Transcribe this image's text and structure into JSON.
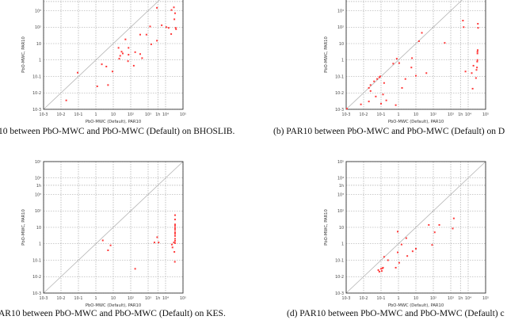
{
  "chart_data": [
    {
      "id": "a",
      "type": "scatter",
      "title": "",
      "xlabel": "PbO-MWC (Default), PAR10",
      "ylabel": "PbO-MWC, PAR10",
      "xscale": "log",
      "yscale": "log",
      "xlim": [
        0.001,
        100000
      ],
      "ylim": [
        0.001,
        100000
      ],
      "x_ticks": [
        "10-3",
        "10-2",
        "10-1",
        "1",
        "10",
        "10²",
        "10³",
        "1h",
        "10⁴",
        "10⁵"
      ],
      "y_ticks": [
        "10-3",
        "10-2",
        "10-1",
        "1",
        "10",
        "10²",
        "10³"
      ],
      "grid": true,
      "diagonal": true,
      "points": [
        [
          0.02,
          0.0035
        ],
        [
          0.09,
          0.17
        ],
        [
          1.2,
          0.025
        ],
        [
          2.2,
          0.55
        ],
        [
          4,
          0.4
        ],
        [
          5,
          0.03
        ],
        [
          9,
          0.2
        ],
        [
          20,
          5.5
        ],
        [
          22,
          1.2
        ],
        [
          25,
          1.8
        ],
        [
          30,
          3.2
        ],
        [
          35,
          2.5
        ],
        [
          50,
          18
        ],
        [
          70,
          0.85
        ],
        [
          75,
          5.5
        ],
        [
          75,
          2.1
        ],
        [
          150,
          0.45
        ],
        [
          180,
          3
        ],
        [
          350,
          2.3
        ],
        [
          350,
          35
        ],
        [
          450,
          1.3
        ],
        [
          800,
          35
        ],
        [
          1300,
          110
        ],
        [
          1500,
          9
        ],
        [
          3200,
          15
        ],
        [
          3200,
          1500
        ],
        [
          6000,
          130
        ],
        [
          11000,
          100
        ],
        [
          15000,
          90
        ],
        [
          21000,
          38
        ],
        [
          22000,
          1100
        ],
        [
          30000,
          1600
        ],
        [
          32000,
          300
        ],
        [
          35000,
          700
        ],
        [
          38000,
          90
        ],
        [
          40000,
          75
        ]
      ]
    },
    {
      "id": "b",
      "type": "scatter",
      "title": "",
      "xlabel": "PbO-MWC (Default), PAR10",
      "ylabel": "PbO-MWC, PAR10",
      "xscale": "log",
      "yscale": "log",
      "xlim": [
        0.001,
        100000
      ],
      "ylim": [
        0.001,
        100000
      ],
      "x_ticks": [
        "10-3",
        "10-2",
        "10-1",
        "1",
        "10",
        "10²",
        "10³",
        "1h",
        "10⁴",
        "10⁵"
      ],
      "y_ticks": [
        "10-3",
        "10-2",
        "10-1",
        "1",
        "10",
        "10²",
        "10³"
      ],
      "grid": true,
      "diagonal": true,
      "points": [
        [
          0.0011,
          0.0011
        ],
        [
          0.007,
          0.002
        ],
        [
          0.02,
          0.003
        ],
        [
          0.02,
          0.02
        ],
        [
          0.025,
          0.03
        ],
        [
          0.025,
          0.013
        ],
        [
          0.04,
          0.05
        ],
        [
          0.05,
          0.006
        ],
        [
          0.06,
          0.07
        ],
        [
          0.08,
          0.09
        ],
        [
          0.09,
          0.1
        ],
        [
          0.1,
          0.0022
        ],
        [
          0.13,
          0.008
        ],
        [
          0.15,
          0.04
        ],
        [
          0.2,
          0.0035
        ],
        [
          0.5,
          0.6
        ],
        [
          0.7,
          0.0018
        ],
        [
          0.8,
          1.2
        ],
        [
          1.1,
          0.65
        ],
        [
          1.6,
          0.02
        ],
        [
          2.5,
          0.07
        ],
        [
          5.5,
          0.35
        ],
        [
          6,
          1.3
        ],
        [
          10,
          0.11
        ],
        [
          15,
          14
        ],
        [
          22,
          45
        ],
        [
          40,
          0.16
        ],
        [
          450,
          11
        ],
        [
          5000,
          250
        ],
        [
          5500,
          100
        ],
        [
          7000,
          0.2
        ],
        [
          16000,
          0.16
        ],
        [
          18000,
          0.018
        ],
        [
          20000,
          0.45
        ],
        [
          28000,
          0.08
        ],
        [
          30000,
          0.25
        ],
        [
          32000,
          0.35
        ],
        [
          33000,
          0.8
        ],
        [
          34000,
          1
        ],
        [
          34000,
          2.5
        ],
        [
          34000,
          3.2
        ],
        [
          35000,
          4
        ],
        [
          36000,
          160
        ],
        [
          37000,
          90
        ]
      ]
    },
    {
      "id": "c",
      "type": "scatter",
      "title": "",
      "xlabel": "PbO-MWC (Default), PAR10",
      "ylabel": "PbO-MWC, PAR10",
      "xscale": "log",
      "yscale": "log",
      "xlim": [
        0.001,
        100000
      ],
      "ylim": [
        0.001,
        100000
      ],
      "x_ticks": [
        "10-3",
        "10-2",
        "10-1",
        "1",
        "10",
        "10²",
        "10³",
        "1h",
        "10⁴",
        "10⁵"
      ],
      "y_ticks": [
        "10-3",
        "10-2",
        "10-1",
        "1",
        "10",
        "10²",
        "10³",
        "1h",
        "10⁴",
        "10⁵"
      ],
      "grid": true,
      "diagonal": true,
      "points": [
        [
          2.5,
          1.6
        ],
        [
          5,
          0.4
        ],
        [
          7,
          0.8
        ],
        [
          180,
          0.03
        ],
        [
          2300,
          1.2
        ],
        [
          3300,
          2.5
        ],
        [
          4000,
          1.2
        ],
        [
          23000,
          0.9
        ],
        [
          25000,
          0.6
        ],
        [
          30000,
          1.2
        ],
        [
          32000,
          0.32
        ],
        [
          34000,
          0.08
        ],
        [
          35000,
          1.5
        ],
        [
          35000,
          2
        ],
        [
          35000,
          3
        ],
        [
          35000,
          4
        ],
        [
          35000,
          5
        ],
        [
          35000,
          7
        ],
        [
          35000,
          9
        ],
        [
          35000,
          12
        ],
        [
          35000,
          15
        ],
        [
          35000,
          30
        ],
        [
          35000,
          55
        ],
        [
          35000,
          1.1
        ]
      ]
    },
    {
      "id": "d",
      "type": "scatter",
      "title": "",
      "xlabel": "PbO-MWC (Default), PAR10",
      "ylabel": "PbO-MWC, PAR10",
      "xscale": "log",
      "yscale": "log",
      "xlim": [
        0.001,
        100000
      ],
      "ylim": [
        0.001,
        100000
      ],
      "x_ticks": [
        "10-3",
        "10-2",
        "10-1",
        "1",
        "10",
        "10²",
        "10³",
        "1h",
        "10⁴",
        "10⁵"
      ],
      "y_ticks": [
        "10-3",
        "10-2",
        "10-1",
        "1",
        "10",
        "10²",
        "10³",
        "1h",
        "10⁴",
        "10⁵"
      ],
      "grid": true,
      "diagonal": true,
      "points": [
        [
          0.07,
          0.025
        ],
        [
          0.08,
          0.02
        ],
        [
          0.1,
          0.03
        ],
        [
          0.11,
          0.022
        ],
        [
          0.12,
          0.032
        ],
        [
          0.13,
          0.035
        ],
        [
          0.15,
          0.16
        ],
        [
          0.25,
          0.1
        ],
        [
          0.7,
          0.035
        ],
        [
          0.9,
          0.3
        ],
        [
          0.9,
          5.5
        ],
        [
          1.1,
          0.07
        ],
        [
          1.5,
          0.9
        ],
        [
          2.8,
          2.2
        ],
        [
          3.2,
          0.18
        ],
        [
          6.5,
          0.35
        ],
        [
          10,
          0.5
        ],
        [
          55,
          14
        ],
        [
          85,
          0.85
        ],
        [
          120,
          5
        ],
        [
          220,
          14
        ],
        [
          1300,
          8.5
        ],
        [
          1500,
          35
        ]
      ]
    }
  ],
  "captions": {
    "a": "10 between PbO-MWC and PbO-MWC (Default) on BHOSLIB.",
    "b": "(b)  PAR10 between PbO-MWC and PbO-MWC (Default) on D",
    "c": "AR10 between PbO-MWC and PbO-MWC (Default) on KES.",
    "d": "(d)  PAR10 between PbO-MWC and PbO-MWC (Default) c"
  },
  "colors": {
    "points": "#ff3b3b",
    "grid": "#9a9a9a",
    "diagonal": "#b5b5b5",
    "frame": "#333333"
  }
}
